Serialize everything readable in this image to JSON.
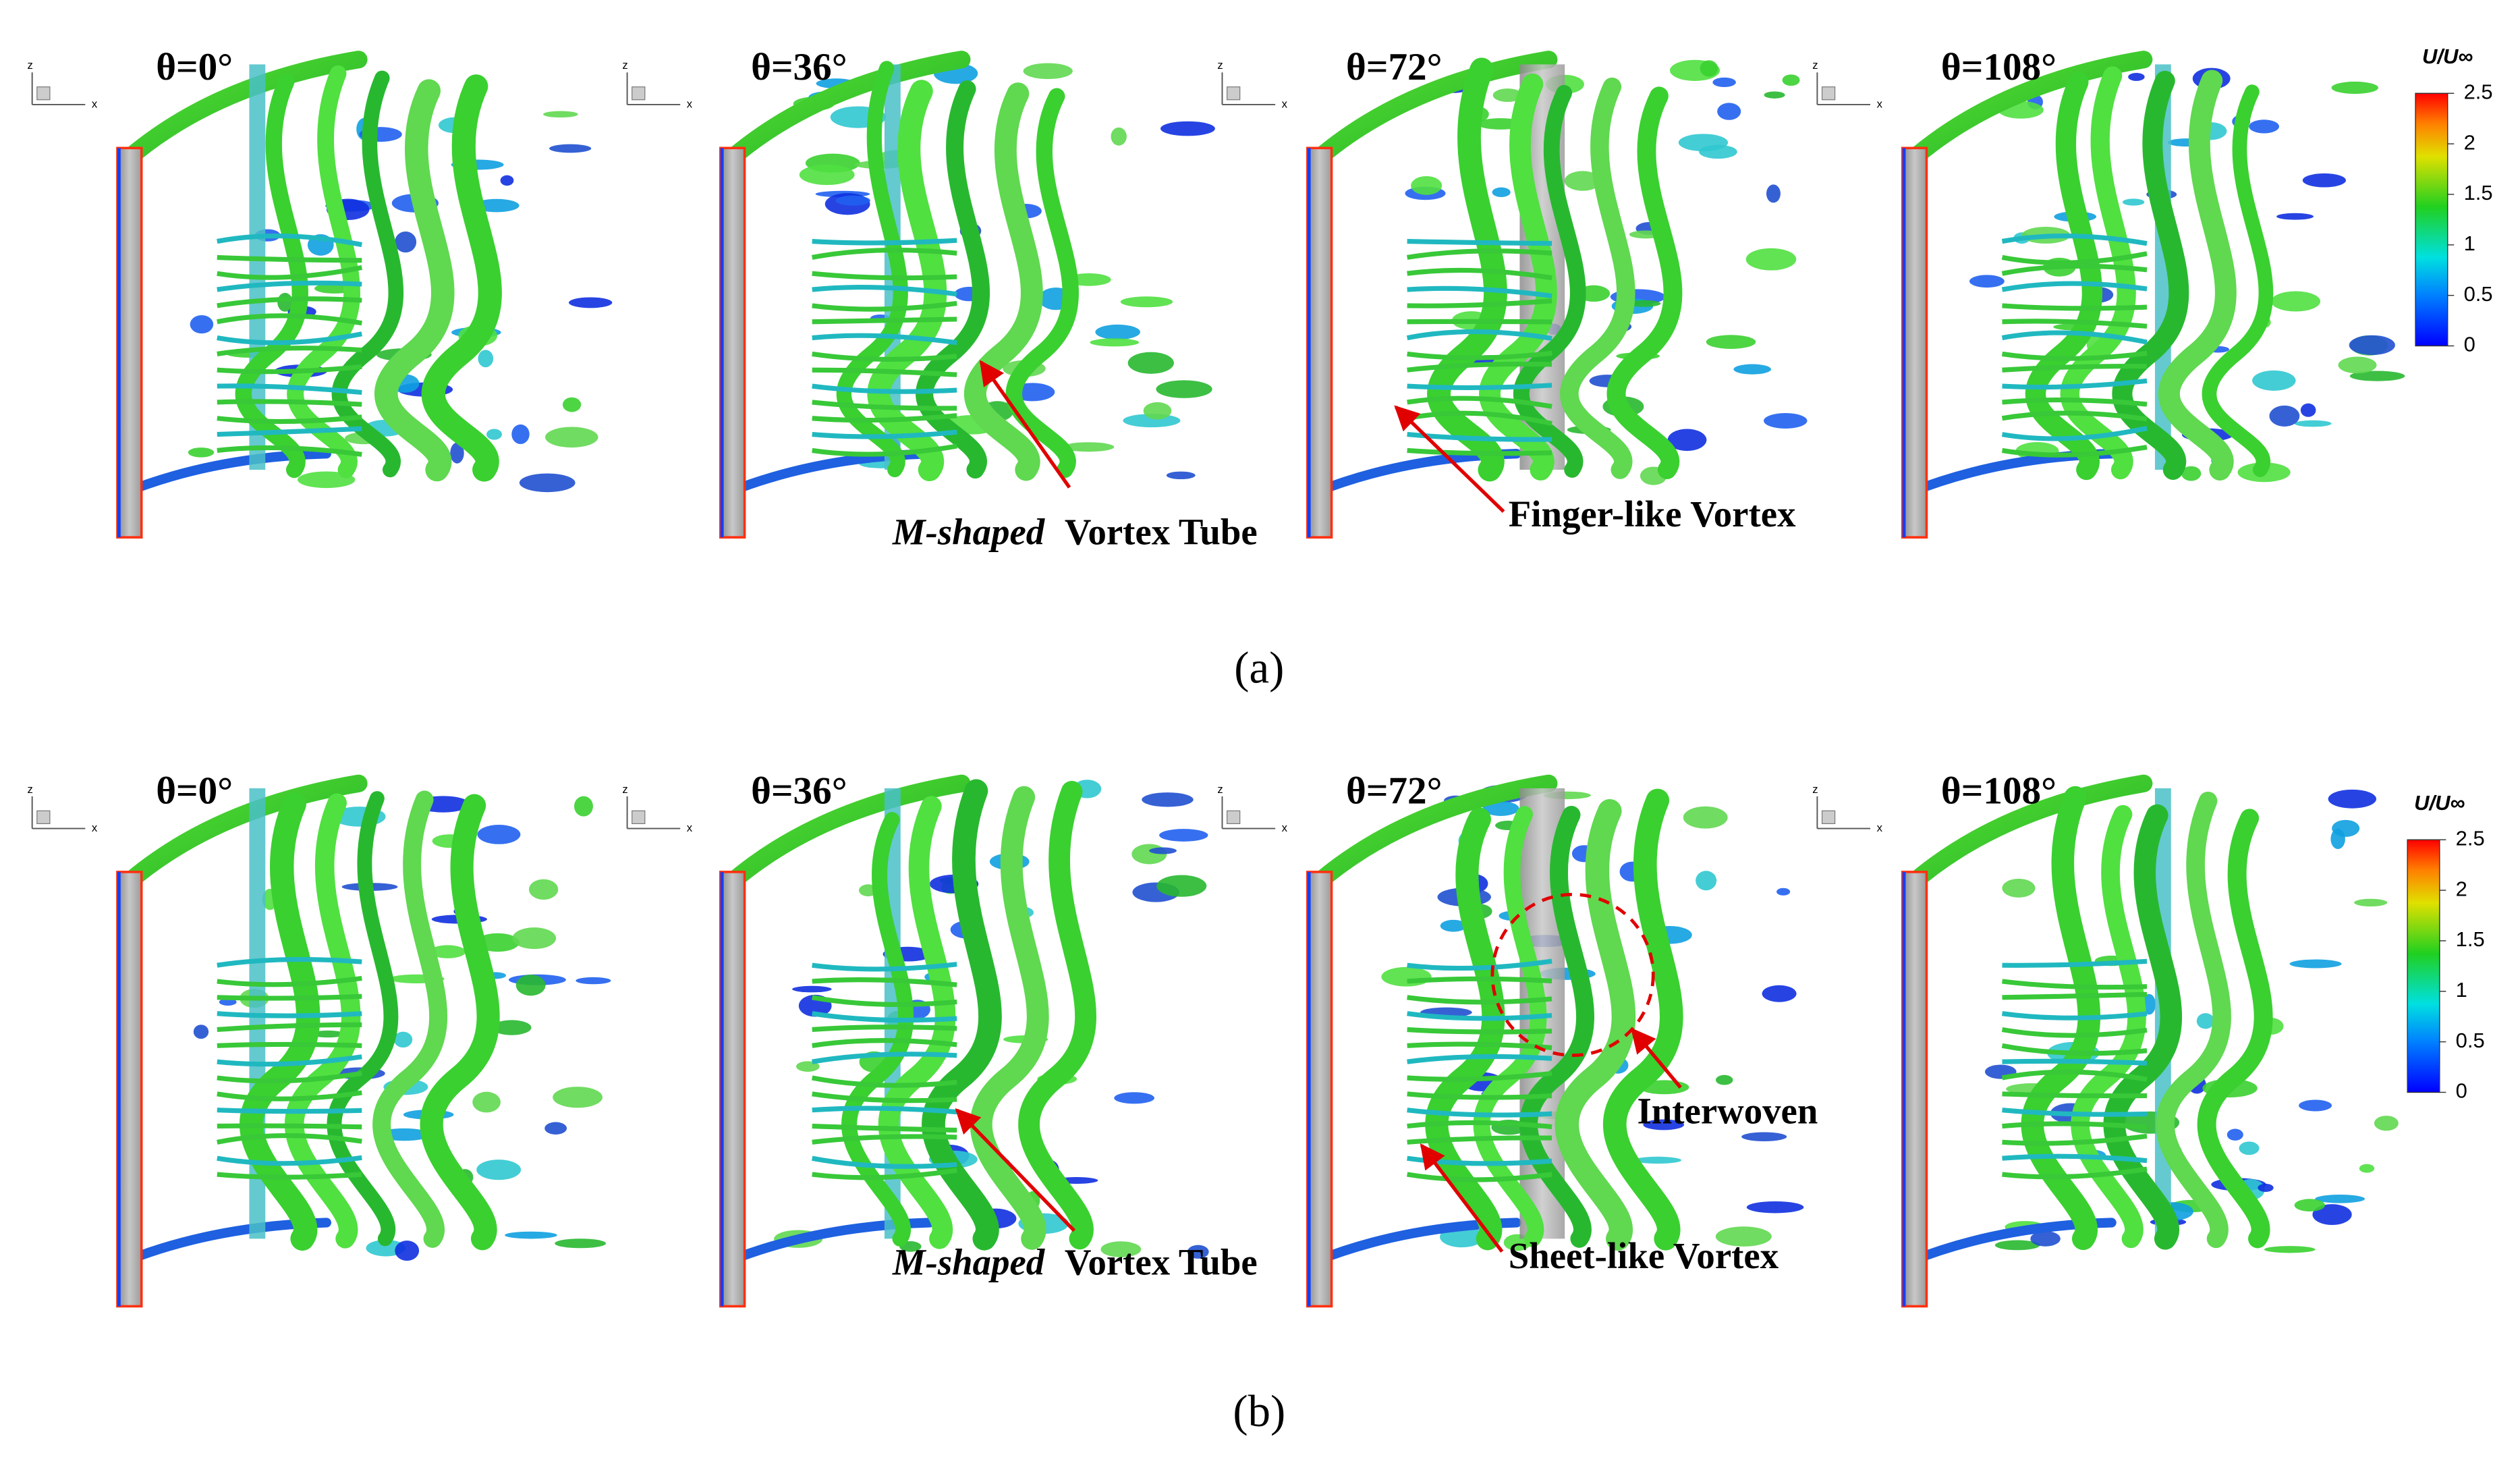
{
  "axis_labels": {
    "z": "z",
    "x": "x"
  },
  "panels": [
    {
      "label": "(a)",
      "frames": [
        {
          "title": "θ=0°"
        },
        {
          "title": "θ=36°"
        },
        {
          "title": "θ=72°"
        },
        {
          "title": "θ=108°"
        }
      ],
      "colorbar": {
        "label": "U/U∞",
        "ticks": [
          0,
          0.5,
          1,
          1.5,
          2,
          2.5
        ]
      },
      "annotations": [
        {
          "italic": "M-shaped",
          "text": "Vortex Tube"
        },
        {
          "text": "Finger-like Vortex"
        }
      ]
    },
    {
      "label": "(b)",
      "frames": [
        {
          "title": "θ=0°"
        },
        {
          "title": "θ=36°"
        },
        {
          "title": "θ=72°"
        },
        {
          "title": "θ=108°"
        }
      ],
      "colorbar": {
        "label": "U/U∞",
        "ticks": [
          0,
          0.5,
          1,
          1.5,
          2,
          2.5
        ]
      },
      "annotations": [
        {
          "italic": "M-shaped",
          "text": "Vortex Tube"
        },
        {
          "text": "Sheet-like Vortex"
        },
        {
          "text": "Interwoven"
        }
      ]
    }
  ]
}
